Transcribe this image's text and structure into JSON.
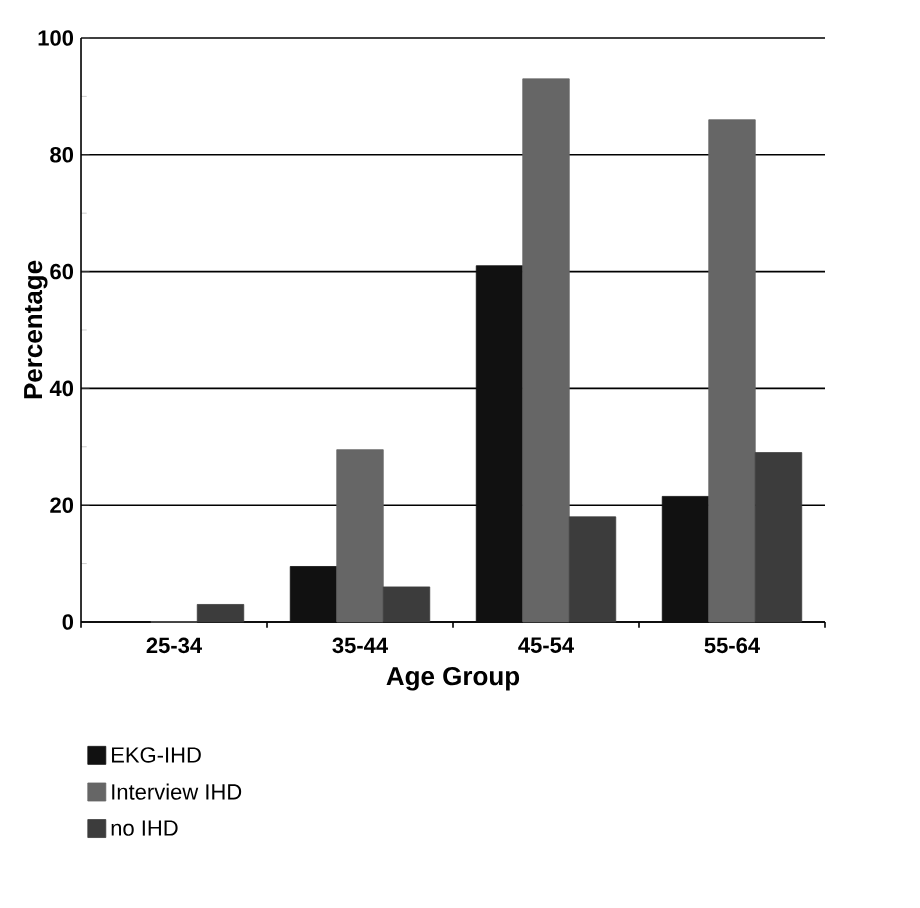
{
  "chart_data": {
    "type": "bar",
    "xlabel": "Age Group",
    "ylabel": "Percentage",
    "categories": [
      "25-34",
      "35-44",
      "45-54",
      "55-64"
    ],
    "series": [
      {
        "name": "EKG-IHD",
        "color": "#111111",
        "values": [
          0,
          9.5,
          61,
          21.5
        ]
      },
      {
        "name": "Interview IHD",
        "color": "#666666",
        "values": [
          0,
          29.5,
          93,
          86
        ]
      },
      {
        "name": "no IHD",
        "color": "#3c3c3c",
        "values": [
          3,
          6,
          18,
          29
        ]
      }
    ],
    "ylim": [
      0,
      100
    ],
    "yticks": [
      0,
      20,
      40,
      60,
      80,
      100
    ],
    "grid": "y",
    "legend": "bottom"
  }
}
